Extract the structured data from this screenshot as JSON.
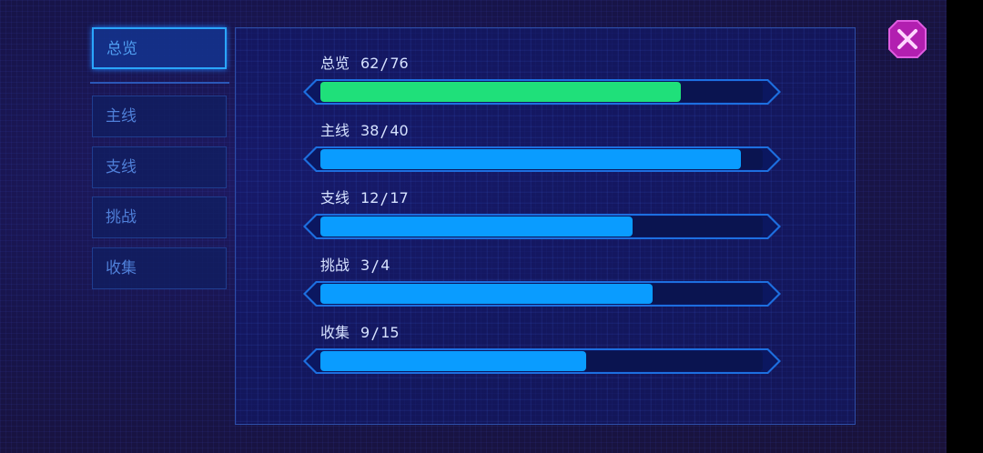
{
  "tabs": [
    "总览",
    "主线",
    "支线",
    "挑战",
    "收集"
  ],
  "active_tab": 0,
  "rows": [
    {
      "label": "总览",
      "done": 62,
      "total": 76,
      "color": "#1fe07a"
    },
    {
      "label": "主线",
      "done": 38,
      "total": 40,
      "color": "#0a9cff"
    },
    {
      "label": "支线",
      "done": 12,
      "total": 17,
      "color": "#0a9cff"
    },
    {
      "label": "挑战",
      "done": 3,
      "total": 4,
      "color": "#0a9cff"
    },
    {
      "label": "收集",
      "done": 9,
      "total": 15,
      "color": "#0a9cff"
    }
  ]
}
